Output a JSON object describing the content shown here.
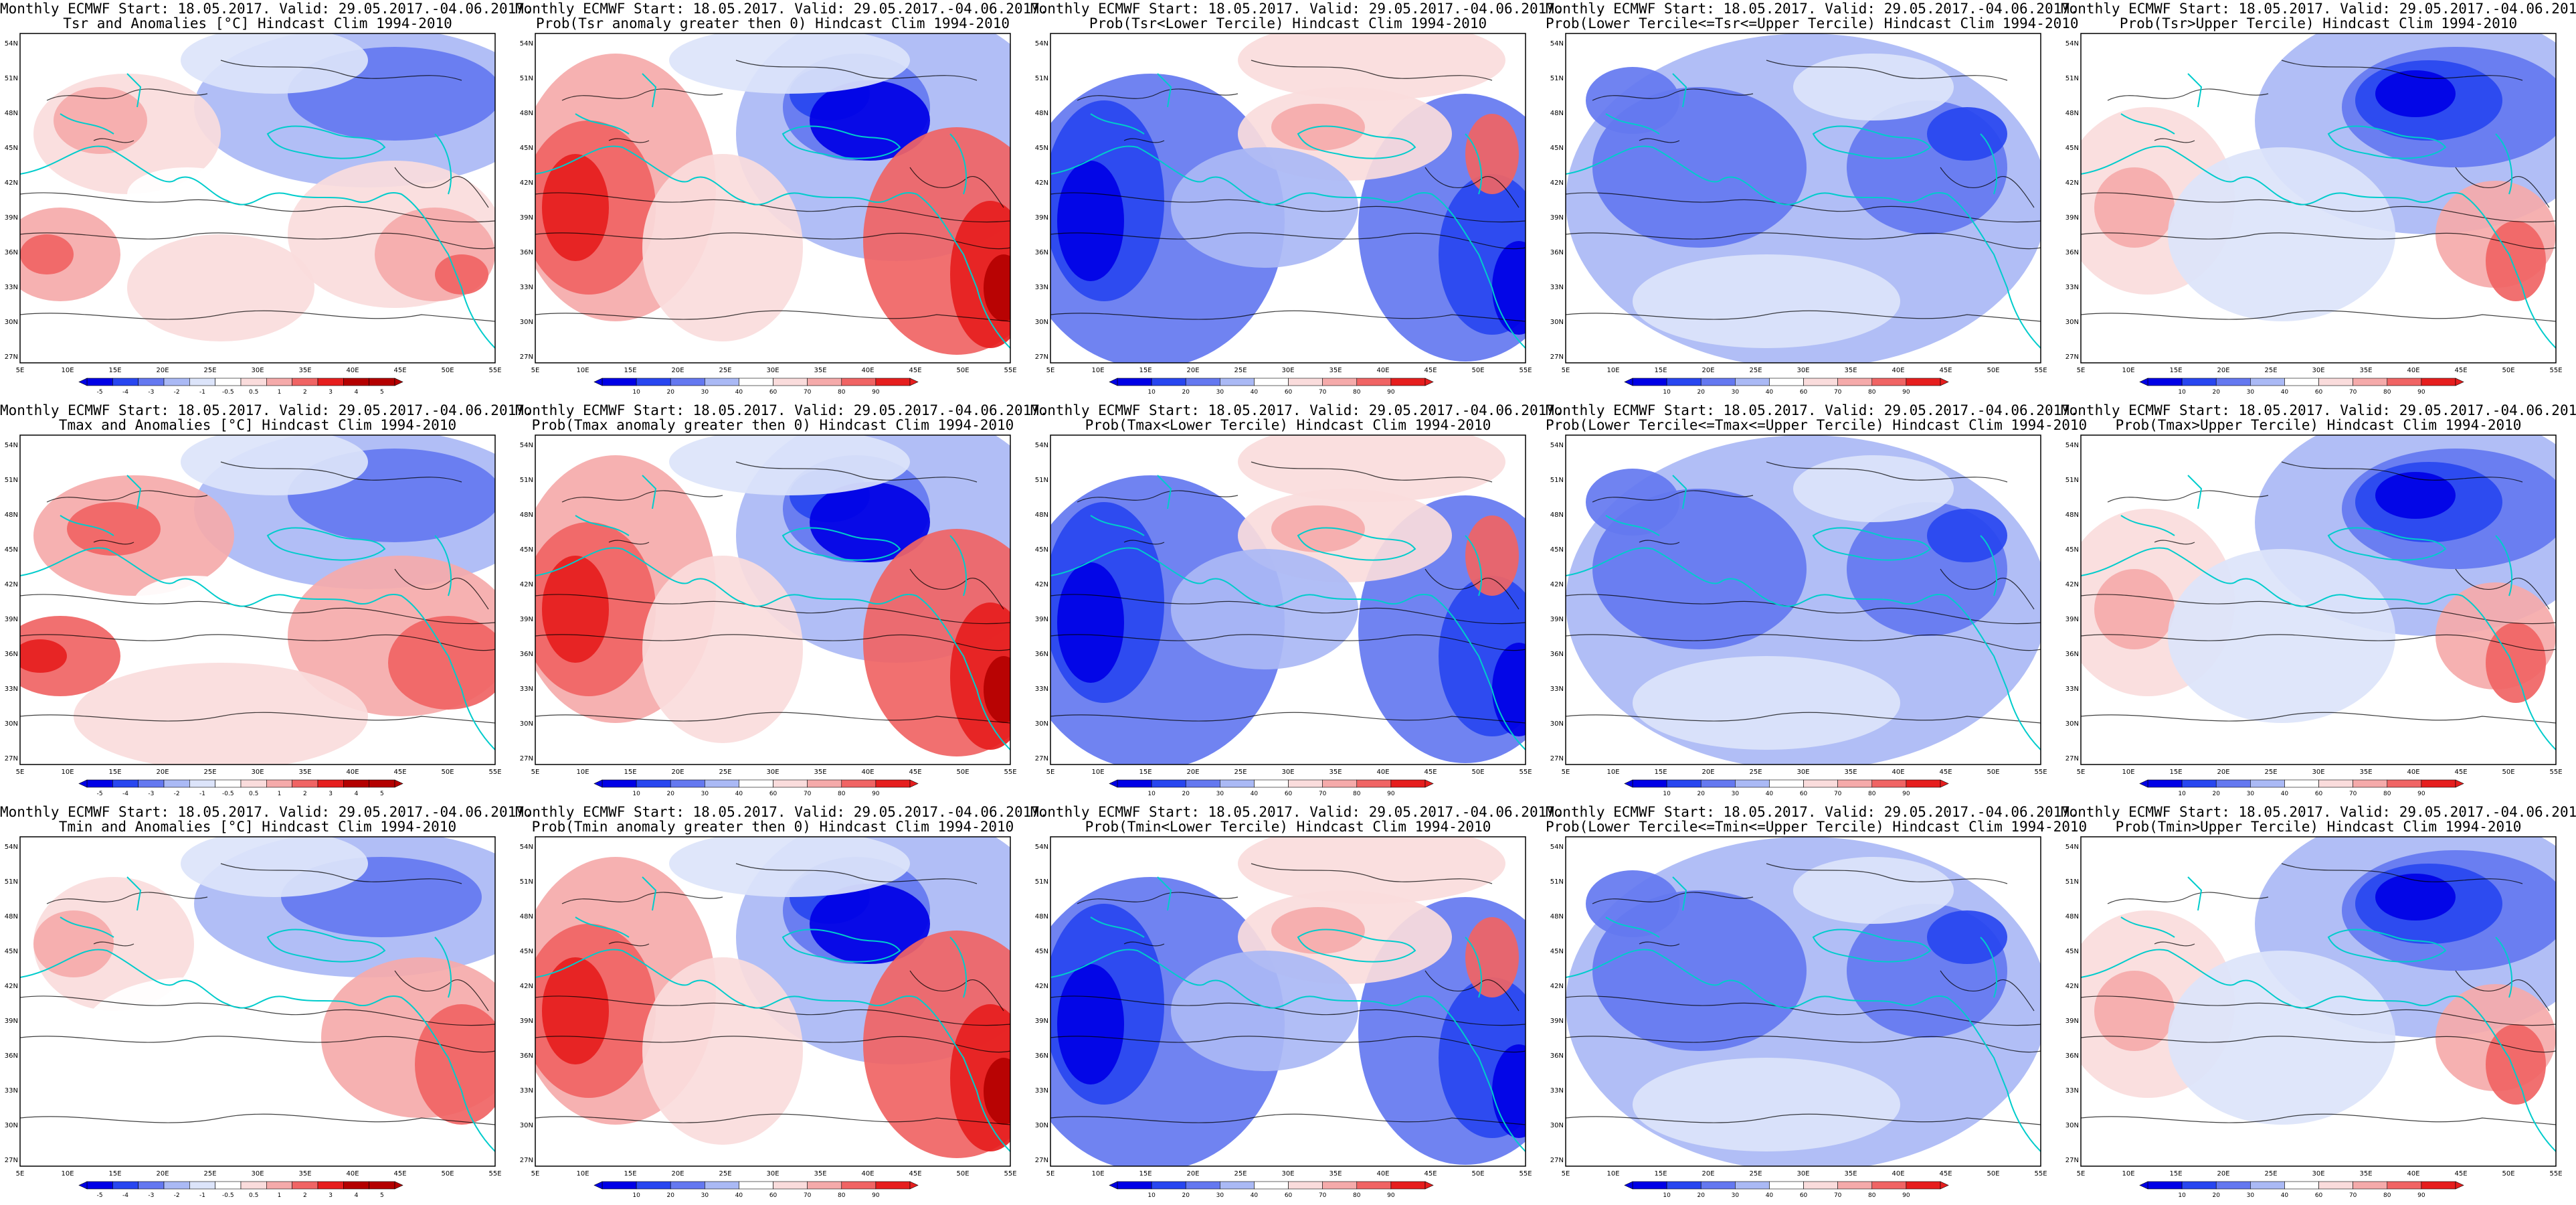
{
  "header_line": "Monthly ECMWF Start: 18.05.2017. Valid: 29.05.2017.-04.06.2017.",
  "lat_labels": [
    "54N",
    "51N",
    "48N",
    "45N",
    "42N",
    "39N",
    "36N",
    "33N",
    "30N",
    "27N"
  ],
  "lon_labels": [
    "5E",
    "10E",
    "15E",
    "20E",
    "25E",
    "30E",
    "35E",
    "40E",
    "45E",
    "50E",
    "55E"
  ],
  "anomaly_scale": [
    "-5",
    "-4",
    "-3",
    "-2",
    "-1",
    "-0.5",
    "0.5",
    "1",
    "2",
    "3",
    "4",
    "5"
  ],
  "prob_scale": [
    "10",
    "20",
    "30",
    "40",
    "60",
    "70",
    "80",
    "90"
  ],
  "colors": {
    "deep_blue": "#0000e6",
    "blue": "#2846f0",
    "mid_blue": "#6478f0",
    "light_blue": "#aab9f5",
    "pale_blue": "#dce4fa",
    "white": "#ffffff",
    "pale_red": "#fadcdc",
    "light_red": "#f5aaaa",
    "mid_red": "#f06464",
    "red": "#e61e1e",
    "deep_red": "#b40000",
    "coast": "#00cccc",
    "contour": "#000000"
  },
  "panels": [
    {
      "title": "Tsr and Anomalies [°C] Hindcast Clim 1994-2010",
      "scale": "anomaly",
      "pattern": "anom_tsr"
    },
    {
      "title": "Prob(Tsr anomaly greater then 0) Hindcast Clim 1994-2010",
      "scale": "prob",
      "pattern": "prob_warm"
    },
    {
      "title": "Prob(Tsr<Lower Tercile) Hindcast Clim 1994-2010",
      "scale": "prob",
      "pattern": "prob_lower"
    },
    {
      "title": "Prob(Lower Tercile<=Tsr<=Upper Tercile) Hindcast Clim 1994-2010",
      "scale": "prob",
      "pattern": "prob_mid"
    },
    {
      "title": "Prob(Tsr>Upper Tercile) Hindcast Clim 1994-2010",
      "scale": "prob",
      "pattern": "prob_upper"
    },
    {
      "title": "Tmax and Anomalies [°C] Hindcast Clim 1994-2010",
      "scale": "anomaly",
      "pattern": "anom_tmax"
    },
    {
      "title": "Prob(Tmax anomaly greater then 0) Hindcast Clim 1994-2010",
      "scale": "prob",
      "pattern": "prob_warm"
    },
    {
      "title": "Prob(Tmax<Lower Tercile) Hindcast Clim 1994-2010",
      "scale": "prob",
      "pattern": "prob_lower"
    },
    {
      "title": "Prob(Lower Tercile<=Tmax<=Upper Tercile) Hindcast Clim 1994-2010",
      "scale": "prob",
      "pattern": "prob_mid"
    },
    {
      "title": "Prob(Tmax>Upper Tercile) Hindcast Clim 1994-2010",
      "scale": "prob",
      "pattern": "prob_upper"
    },
    {
      "title": "Tmin and Anomalies [°C] Hindcast Clim 1994-2010",
      "scale": "anomaly",
      "pattern": "anom_tmin"
    },
    {
      "title": "Prob(Tmin anomaly greater then 0) Hindcast Clim 1994-2010",
      "scale": "prob",
      "pattern": "prob_warm"
    },
    {
      "title": "Prob(Tmin<Lower Tercile) Hindcast Clim 1994-2010",
      "scale": "prob",
      "pattern": "prob_lower"
    },
    {
      "title": "Prob(Lower Tercile<=Tmin<=Upper Tercile) Hindcast Clim 1994-2010",
      "scale": "prob",
      "pattern": "prob_mid"
    },
    {
      "title": "Prob(Tmin>Upper Tercile) Hindcast Clim 1994-2010",
      "scale": "prob",
      "pattern": "prob_upper"
    }
  ]
}
